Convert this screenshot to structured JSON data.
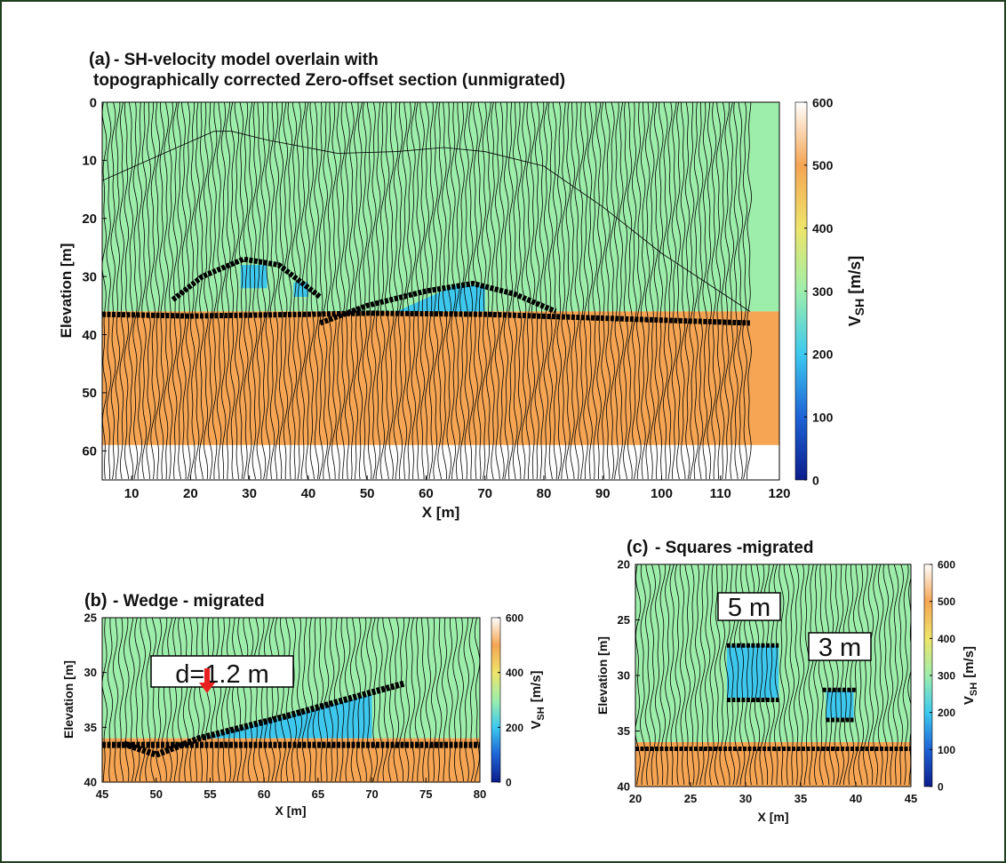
{
  "chart_data": [
    {
      "type": "velocity-section",
      "label": "(a)",
      "title": "- SH-velocity model overlain with",
      "subtitle": "topographically corrected Zero-offset section (unmigrated)",
      "xlabel": "X [m]",
      "ylabel": "Elevation [m]",
      "xlim": [
        5,
        120
      ],
      "xticks": [
        10,
        20,
        30,
        40,
        50,
        60,
        70,
        80,
        90,
        100,
        110,
        120
      ],
      "ylim": [
        0,
        65
      ],
      "yticks": [
        0,
        10,
        20,
        30,
        40,
        50,
        60
      ],
      "clim": [
        0,
        600
      ],
      "cticks": [
        0,
        100,
        200,
        300,
        400,
        500,
        600
      ],
      "colorbar_label": {
        "symbol": "V",
        "subscript": "SH",
        "unit": "[m/s]"
      },
      "colormap": [
        "#0b1d8c",
        "#1e63d6",
        "#3cc9ef",
        "#9eeeab",
        "#eee56a",
        "#f5a553",
        "#ffffff"
      ],
      "regions": [
        {
          "velocity": 270,
          "color": "#9eeeab",
          "points": [
            [
              5,
              0
            ],
            [
              120,
              0
            ],
            [
              120,
              36
            ],
            [
              5,
              36
            ]
          ]
        },
        {
          "velocity": 500,
          "color": "#f5a553",
          "points": [
            [
              5,
              36
            ],
            [
              120,
              36
            ],
            [
              120,
              59
            ],
            [
              5,
              59
            ]
          ]
        },
        {
          "velocity": 150,
          "color": "#3ec8ee",
          "points": [
            [
              28.5,
              28
            ],
            [
              33,
              28
            ],
            [
              33,
              32
            ],
            [
              28.5,
              32
            ]
          ]
        },
        {
          "velocity": 150,
          "color": "#3ec8ee",
          "points": [
            [
              37.5,
              31
            ],
            [
              40,
              31
            ],
            [
              40,
              33.5
            ],
            [
              37.5,
              33.5
            ]
          ]
        },
        {
          "velocity": 150,
          "color": "#3ec8ee",
          "points": [
            [
              55,
              36
            ],
            [
              65,
              31.5
            ],
            [
              70,
              31.5
            ],
            [
              70,
              36
            ]
          ]
        }
      ]
    },
    {
      "type": "velocity-section",
      "label": "(b)",
      "title": "- Wedge - migrated",
      "xlabel": "X [m]",
      "ylabel": "Elevation [m]",
      "xlim": [
        45,
        80
      ],
      "xticks": [
        45,
        50,
        55,
        60,
        65,
        70,
        75,
        80
      ],
      "ylim": [
        25,
        40
      ],
      "yticks": [
        25,
        30,
        35,
        40
      ],
      "clim": [
        0,
        600
      ],
      "cticks": [
        0,
        200,
        400,
        600
      ],
      "colorbar_label": {
        "symbol": "V",
        "subscript": "SH",
        "unit": "[m/s]"
      },
      "colormap": [
        "#0b1d8c",
        "#1e63d6",
        "#3cc9ef",
        "#9eeeab",
        "#eee56a",
        "#f5a553",
        "#ffffff"
      ],
      "regions": [
        {
          "velocity": 270,
          "color": "#9eeeab",
          "points": [
            [
              45,
              25
            ],
            [
              80,
              25
            ],
            [
              80,
              36
            ],
            [
              45,
              36
            ]
          ]
        },
        {
          "velocity": 500,
          "color": "#f5a553",
          "points": [
            [
              45,
              36
            ],
            [
              80,
              36
            ],
            [
              80,
              40
            ],
            [
              45,
              40
            ]
          ]
        },
        {
          "velocity": 150,
          "color": "#3ec8ee",
          "points": [
            [
              54,
              36
            ],
            [
              70,
              32
            ],
            [
              70,
              36
            ]
          ]
        }
      ],
      "annotations": [
        "d=1.2 m"
      ]
    },
    {
      "type": "velocity-section",
      "label": "(c)",
      "title": "- Squares -migrated",
      "xlabel": "X [m]",
      "ylabel": "Elevation [m]",
      "xlim": [
        20,
        45
      ],
      "xticks": [
        20,
        25,
        30,
        35,
        40,
        45
      ],
      "ylim": [
        20,
        40
      ],
      "yticks": [
        20,
        25,
        30,
        35,
        40
      ],
      "clim": [
        0,
        600
      ],
      "cticks": [
        0,
        100,
        200,
        300,
        400,
        500,
        600
      ],
      "colorbar_label": {
        "symbol": "V",
        "subscript": "SH",
        "unit": "[m/s]"
      },
      "colormap": [
        "#0b1d8c",
        "#1e63d6",
        "#3cc9ef",
        "#9eeeab",
        "#eee56a",
        "#f5a553",
        "#ffffff"
      ],
      "regions": [
        {
          "velocity": 270,
          "color": "#9eeeab",
          "points": [
            [
              20,
              20
            ],
            [
              45,
              20
            ],
            [
              45,
              36
            ],
            [
              20,
              36
            ]
          ]
        },
        {
          "velocity": 500,
          "color": "#f5a553",
          "points": [
            [
              20,
              36
            ],
            [
              45,
              36
            ],
            [
              45,
              40
            ],
            [
              20,
              40
            ]
          ]
        },
        {
          "velocity": 150,
          "color": "#3ec8ee",
          "points": [
            [
              28.3,
              27.3
            ],
            [
              33,
              27.3
            ],
            [
              33,
              32
            ],
            [
              28.3,
              32
            ]
          ]
        },
        {
          "velocity": 150,
          "color": "#3ec8ee",
          "points": [
            [
              37.3,
              31.4
            ],
            [
              39.8,
              31.4
            ],
            [
              39.8,
              33.8
            ],
            [
              37.3,
              33.8
            ]
          ]
        }
      ],
      "annotations": [
        "5 m",
        "3 m"
      ]
    }
  ]
}
